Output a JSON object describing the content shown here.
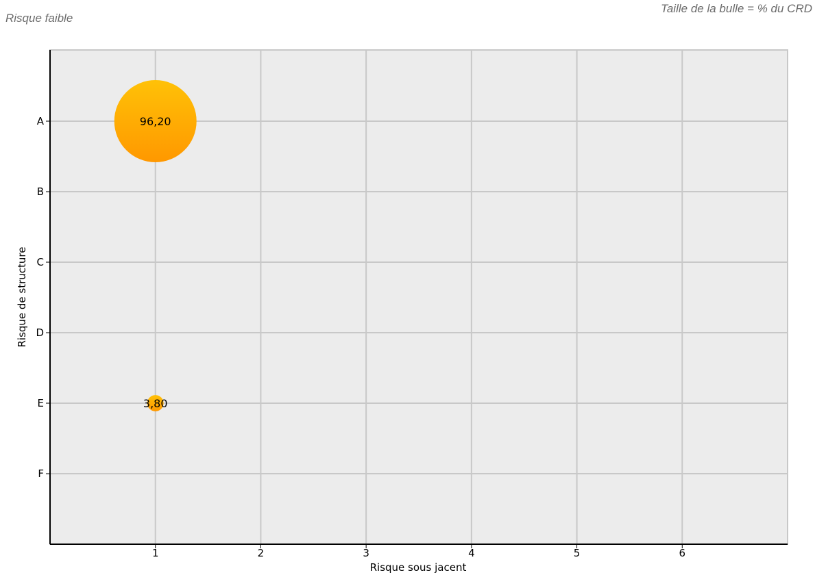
{
  "header": {
    "risk_label": "Risque faible",
    "bubble_legend": "Taille de la bulle = % du CRD"
  },
  "chart_data": {
    "type": "scatter",
    "title": "",
    "xlabel": "Risque sous jacent",
    "ylabel": "Risque de structure",
    "x_ticks": [
      1,
      2,
      3,
      4,
      5,
      6
    ],
    "xlim": [
      0,
      7
    ],
    "y_categories": [
      "A",
      "B",
      "C",
      "D",
      "E",
      "F"
    ],
    "grid": true,
    "colors": {
      "background": "#ececec",
      "grid": "#c8c8c8",
      "bubble_top": "#ffc107",
      "bubble_bottom": "#ff9800"
    },
    "points": [
      {
        "x": 1,
        "y": "A",
        "size": 96.2,
        "label": "96,20"
      },
      {
        "x": 1,
        "y": "E",
        "size": 3.8,
        "label": "3,80"
      }
    ]
  }
}
